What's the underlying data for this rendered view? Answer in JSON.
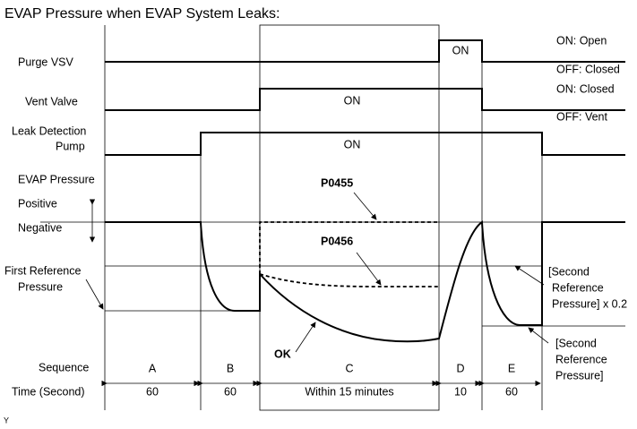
{
  "title": "EVAP Pressure when EVAP System Leaks:",
  "rows": {
    "purge": "Purge VSV",
    "vent": "Vent Valve",
    "pump": [
      "Leak Detection",
      "Pump"
    ],
    "pressure": "EVAP Pressure",
    "positive": "Positive",
    "negative": "Negative",
    "first_reference": [
      "First Reference",
      "Pressure"
    ],
    "sequence": "Sequence",
    "time": "Time (Second)"
  },
  "notes": {
    "purge_on": "ON: Open",
    "purge_off": "OFF: Closed",
    "vent_on": "ON: Closed",
    "vent_off": "OFF: Vent"
  },
  "signals": {
    "purge_on": "ON",
    "vent_on": "ON",
    "pump_on": "ON"
  },
  "curves": {
    "p0455": "P0455",
    "p0456": "P0456",
    "ok": "OK"
  },
  "second_reference_02": [
    "[Second",
    "Reference",
    "Pressure] x 0.2"
  ],
  "second_reference": [
    "[Second",
    "Reference",
    "Pressure]"
  ],
  "sequence": [
    "A",
    "B",
    "C",
    "D",
    "E"
  ],
  "time": [
    "60",
    "60",
    "Within 15 minutes",
    "10",
    "60"
  ],
  "footer": "Y"
}
